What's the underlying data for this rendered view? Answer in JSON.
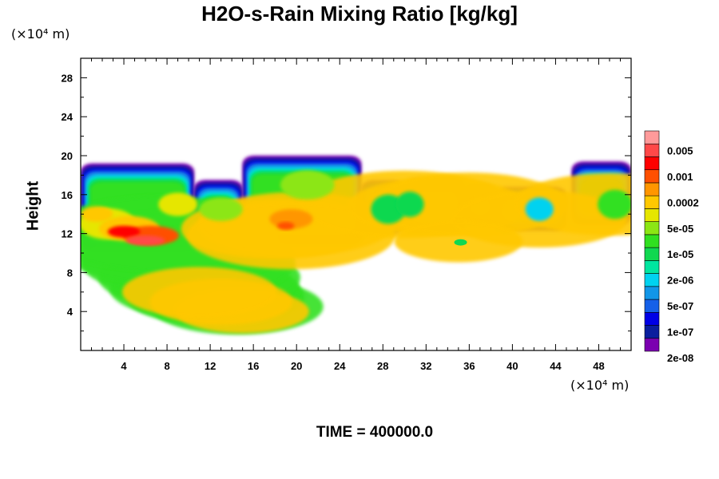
{
  "chart_data": {
    "type": "heatmap",
    "title": "H2O-s-Rain Mixing Ratio [kg/kg]",
    "xlabel": "",
    "ylabel": "Height",
    "x_unit": "(×10⁴ m)",
    "y_unit": "(×10⁴ m)",
    "xlim": [
      0,
      51
    ],
    "ylim": [
      0,
      30
    ],
    "x_ticks": [
      4,
      8,
      12,
      16,
      20,
      24,
      28,
      32,
      36,
      40,
      44,
      48
    ],
    "y_ticks": [
      4,
      8,
      12,
      16,
      20,
      24,
      28
    ],
    "grid": false,
    "colorbar": {
      "placement": "right",
      "labels": [
        "0.005",
        "0.001",
        "0.0002",
        "5e-05",
        "1e-05",
        "2e-06",
        "5e-07",
        "1e-07",
        "2e-08"
      ],
      "colors": [
        "#7b00b0",
        "#0a1e9e",
        "#0000e6",
        "#1560e8",
        "#1296e8",
        "#00d2f0",
        "#00e6a0",
        "#10d850",
        "#30e020",
        "#8ce614",
        "#e6e600",
        "#ffc800",
        "#ff9600",
        "#ff5000",
        "#ff0000",
        "#ff4848",
        "#ff9a9a"
      ]
    },
    "series": [
      {
        "values": [
          [
            0,
            14.5,
            4.5,
            14.5
          ],
          [
            0,
            12.5,
            5.5,
            15.0
          ],
          [
            0,
            11.5,
            6.3,
            16.0
          ],
          [
            0,
            11.0,
            7.5,
            17.0
          ],
          [
            0,
            10.0,
            9.0,
            18.0
          ],
          [
            0,
            8.5,
            10.5,
            19.0
          ],
          [
            0,
            7.5,
            12.0,
            19.5
          ],
          [
            3,
            15.0,
            4.0,
            11.2
          ],
          [
            3,
            13.0,
            5.0,
            12.0
          ],
          [
            3,
            11.0,
            6.0,
            13.0
          ],
          [
            3,
            18.0,
            12.5,
            15.8
          ],
          [
            3,
            20.0,
            13.0,
            16.5
          ],
          [
            3,
            19.5,
            11.8,
            17.5
          ],
          [
            3,
            33.0,
            14.8,
            15.0
          ],
          [
            3,
            30.0,
            15.0,
            17.5
          ],
          [
            3,
            36.0,
            15.0,
            16.5
          ],
          [
            3,
            42.5,
            13.5,
            14.8
          ],
          [
            3,
            49.0,
            15.0,
            16.2
          ],
          [
            3,
            35.0,
            11.2,
            10.8
          ]
        ]
      }
    ],
    "time_label": "TIME = 400000.0"
  }
}
